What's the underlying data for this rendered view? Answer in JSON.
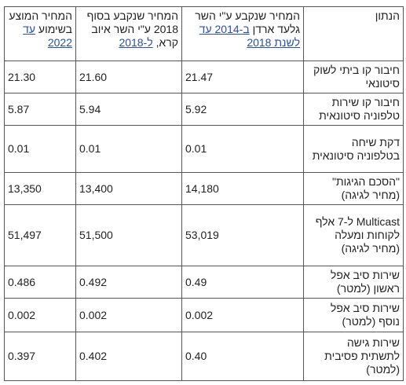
{
  "table": {
    "header": [
      [
        {
          "text": "הנתון"
        }
      ],
      [
        {
          "text": "המחיר שנקבע ע\"י השר גלעד ארדן "
        },
        {
          "text": "ב-2014 עד לשנת 2018",
          "link": true
        }
      ],
      [
        {
          "text": "המחיר שנקבע בסוף 2018 ע\"י השר איוב קרא, "
        },
        {
          "text": "ל-2018",
          "link": true
        }
      ],
      [
        {
          "text": "המחיר המוצע בשימוע "
        },
        {
          "text": "עד 2022",
          "link": true
        }
      ]
    ],
    "rows": [
      [
        "חיבור קו ביתי לשוק סיטונאי",
        "21.47",
        "21.60",
        "21.30"
      ],
      [
        "חיבור קו שירות טלפוניה סיטונאית",
        "5.92",
        "5.94",
        "5.87"
      ],
      [
        "דקת שיחה בטלפוניה סיטונאית",
        "0.01",
        "0.01",
        "0.01"
      ],
      [
        "\"הסכם הגיגות\" (מחיר לגיגה)",
        "14,180",
        "13,400",
        "13,350"
      ],
      [
        "Multicast ל-7 אלף לקוחות ומעלה (מחיר לגיגה)",
        "53,019",
        "51,500",
        "51,497"
      ],
      [
        "שירות סיב אפל ראשון (למטר)",
        "0.49",
        "0.492",
        "0.486"
      ],
      [
        "שירות סיב אפל נוסף (למטר)",
        "0.002",
        "0.002",
        "0.002"
      ],
      [
        "שירות גישה לתשתית פסיבית (למטר)",
        "0.40",
        "0.402",
        "0.397"
      ]
    ]
  }
}
